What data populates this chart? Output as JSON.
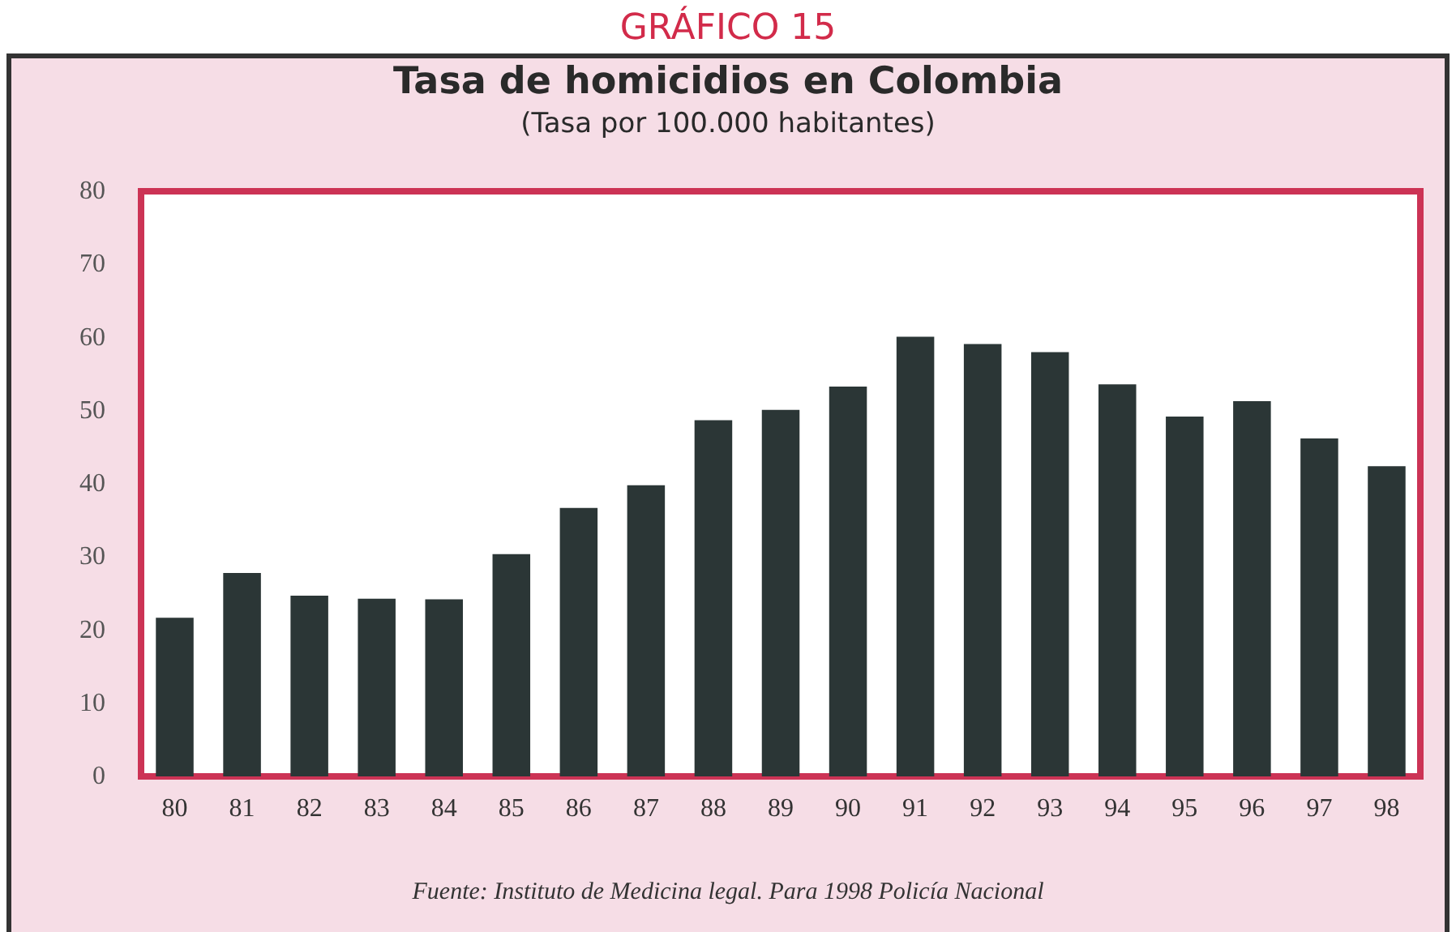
{
  "chart_data": {
    "type": "bar",
    "title": "Tasa de homicidios en Colombia",
    "subtitle": "(Tasa por 100.000 habitantes)",
    "annotations": [
      "GRÁFICO 15",
      "Fuente: Instituto de Medicina legal. Para 1998 Policía Nacional"
    ],
    "categories": [
      "80",
      "81",
      "82",
      "83",
      "84",
      "85",
      "86",
      "87",
      "88",
      "89",
      "90",
      "91",
      "92",
      "93",
      "94",
      "95",
      "96",
      "97",
      "98"
    ],
    "values": [
      21.7,
      27.8,
      24.7,
      24.3,
      24.2,
      30.4,
      36.7,
      39.8,
      48.7,
      50.1,
      53.3,
      60.1,
      59.1,
      58.0,
      53.6,
      49.2,
      51.3,
      46.2,
      42.4
    ],
    "color": "#2b3636",
    "ylim": [
      0,
      80
    ],
    "yticks": [
      0,
      10,
      20,
      30,
      40,
      50,
      60,
      70,
      80
    ],
    "grid": false
  }
}
